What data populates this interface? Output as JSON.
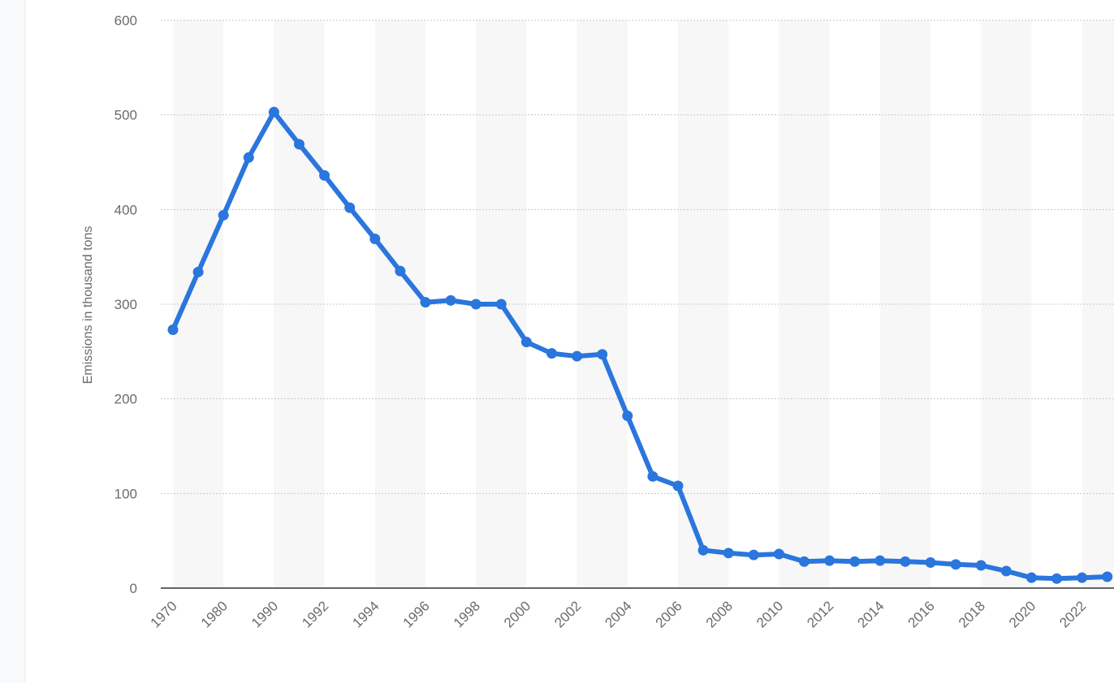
{
  "chart_data": {
    "type": "line",
    "title": "",
    "xlabel": "",
    "ylabel": "Emissions in thousand tons",
    "ylim": [
      0,
      600
    ],
    "yticks": [
      0,
      100,
      200,
      300,
      400,
      500,
      600
    ],
    "grid": true,
    "colors": {
      "line": "#2a76dd",
      "grid": "#c8c8c8",
      "band": "#f7f7f7",
      "axis": "#333333"
    },
    "categories": [
      "1970",
      "1975",
      "1980",
      "1985",
      "1990",
      "1991",
      "1992",
      "1993",
      "1994",
      "1995",
      "1996",
      "1997",
      "1998",
      "1999",
      "2000",
      "2001",
      "2002",
      "2003",
      "2004",
      "2005",
      "2006",
      "2007",
      "2008",
      "2009",
      "2010",
      "2011",
      "2012",
      "2013",
      "2014",
      "2015",
      "2016",
      "2017",
      "2018",
      "2019",
      "2020",
      "2021",
      "2022",
      "2023"
    ],
    "xtick_labels": [
      "1970",
      "",
      "1980",
      "",
      "1990",
      "",
      "1992",
      "",
      "1994",
      "",
      "1996",
      "",
      "1998",
      "",
      "2000",
      "",
      "2002",
      "",
      "2004",
      "",
      "2006",
      "",
      "2008",
      "",
      "2010",
      "",
      "2012",
      "",
      "2014",
      "",
      "2016",
      "",
      "2018",
      "",
      "2020",
      "",
      "2022",
      ""
    ],
    "series": [
      {
        "name": "",
        "values": [
          273,
          334,
          394,
          455,
          503,
          469,
          436,
          402,
          369,
          335,
          302,
          304,
          300,
          300,
          260,
          248,
          245,
          247,
          182,
          118,
          108,
          40,
          37,
          35,
          36,
          28,
          29,
          28,
          29,
          28,
          27,
          25,
          24,
          18,
          11,
          10,
          11,
          12
        ]
      }
    ]
  }
}
